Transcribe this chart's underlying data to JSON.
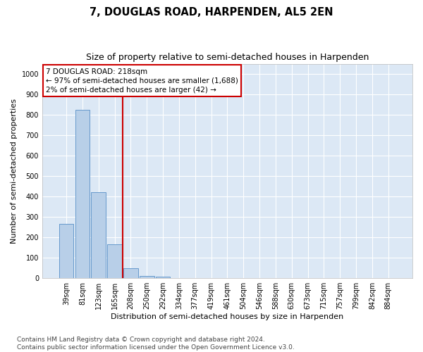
{
  "title": "7, DOUGLAS ROAD, HARPENDEN, AL5 2EN",
  "subtitle": "Size of property relative to semi-detached houses in Harpenden",
  "xlabel": "Distribution of semi-detached houses by size in Harpenden",
  "ylabel": "Number of semi-detached properties",
  "categories": [
    "39sqm",
    "81sqm",
    "123sqm",
    "165sqm",
    "208sqm",
    "250sqm",
    "292sqm",
    "334sqm",
    "377sqm",
    "419sqm",
    "461sqm",
    "504sqm",
    "546sqm",
    "588sqm",
    "630sqm",
    "673sqm",
    "715sqm",
    "757sqm",
    "799sqm",
    "842sqm",
    "884sqm"
  ],
  "bar_values": [
    265,
    825,
    420,
    165,
    50,
    12,
    8,
    0,
    0,
    0,
    0,
    0,
    0,
    0,
    0,
    0,
    0,
    0,
    0,
    0,
    0
  ],
  "bar_color": "#b8cfe8",
  "bar_edgecolor": "#6699cc",
  "property_line_color": "#cc0000",
  "annotation_text": "7 DOUGLAS ROAD: 218sqm\n← 97% of semi-detached houses are smaller (1,688)\n2% of semi-detached houses are larger (42) →",
  "annotation_box_color": "#ffffff",
  "annotation_box_edgecolor": "#cc0000",
  "ylim": [
    0,
    1050
  ],
  "yticks": [
    0,
    100,
    200,
    300,
    400,
    500,
    600,
    700,
    800,
    900,
    1000
  ],
  "background_color": "#dce8f5",
  "footer_text": "Contains HM Land Registry data © Crown copyright and database right 2024.\nContains public sector information licensed under the Open Government Licence v3.0.",
  "grid_color": "#ffffff",
  "title_fontsize": 10.5,
  "subtitle_fontsize": 9,
  "ylabel_fontsize": 8,
  "xlabel_fontsize": 8,
  "tick_fontsize": 7,
  "annotation_fontsize": 7.5,
  "footer_fontsize": 6.5
}
